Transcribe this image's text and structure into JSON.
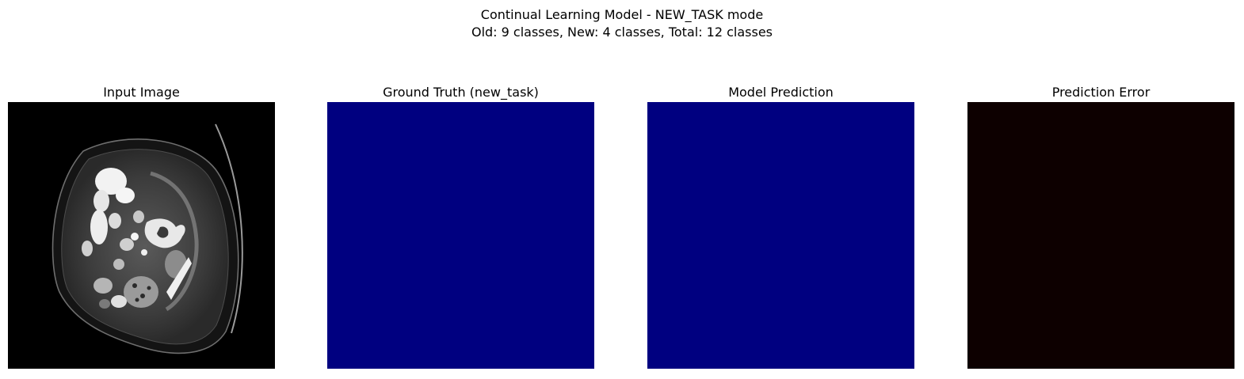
{
  "figure": {
    "title_line1": "Continual Learning Model - NEW_TASK mode",
    "title_line2": "Old: 9 classes, New: 4 classes, Total: 12 classes"
  },
  "panels": [
    {
      "title": "Input Image",
      "content": "grayscale CT scan slice (abdomen)",
      "background": "#000000"
    },
    {
      "title": "Ground Truth (new_task)",
      "fill_color": "#000080"
    },
    {
      "title": "Model Prediction",
      "fill_color": "#000080"
    },
    {
      "title": "Prediction Error",
      "fill_color": "#0d0000"
    }
  ]
}
